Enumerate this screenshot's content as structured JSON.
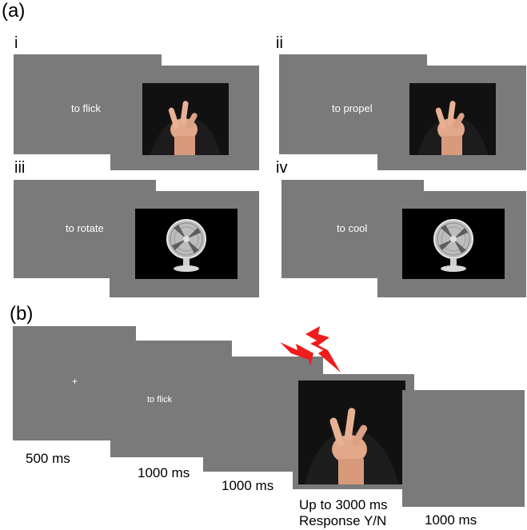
{
  "part_a": {
    "label": "(a)",
    "panels": [
      {
        "numeral": "i",
        "word": "to flick",
        "image": "hand-gesture"
      },
      {
        "numeral": "ii",
        "word": "to propel",
        "image": "hand-gesture"
      },
      {
        "numeral": "iii",
        "word": "to rotate",
        "image": "electric-fan"
      },
      {
        "numeral": "iv",
        "word": "to cool",
        "image": "electric-fan"
      }
    ]
  },
  "part_b": {
    "label": "(b)",
    "fixation": "+",
    "word": "to flick",
    "image": "hand-gesture",
    "tms_icon": "lightning-bolt-icon",
    "durations": [
      "500 ms",
      "1000 ms",
      "1000 ms",
      "Up to 3000 ms",
      "1000 ms"
    ],
    "response": "Response Y/N"
  },
  "colors": {
    "screen": "#7a7a7a",
    "bolt": "#ee1c1c",
    "photo_bg": "#101010"
  }
}
